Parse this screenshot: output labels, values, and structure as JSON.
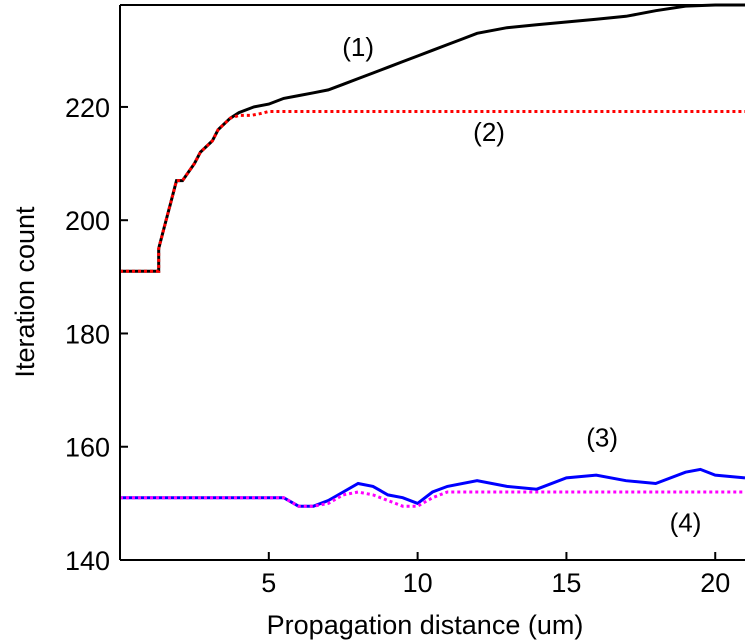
{
  "chart_data": {
    "type": "line",
    "xlabel": "Propagation distance (um)",
    "ylabel": "Iteration count",
    "xlim": [
      0,
      21
    ],
    "ylim": [
      140,
      238
    ],
    "xticks": [
      5,
      10,
      15,
      20
    ],
    "yticks": [
      140,
      160,
      180,
      200,
      220
    ],
    "xtick_labels": [
      "5",
      "10",
      "15",
      "20"
    ],
    "ytick_labels": [
      "140",
      "160",
      "180",
      "200",
      "220"
    ],
    "grid": false,
    "legend": "none",
    "annotations": [
      {
        "text": "(1)",
        "x": 8.0,
        "y": 229
      },
      {
        "text": "(2)",
        "x": 12.4,
        "y": 214
      },
      {
        "text": "(3)",
        "x": 16.2,
        "y": 160
      },
      {
        "text": "(4)",
        "x": 19.0,
        "y": 145
      }
    ],
    "series": [
      {
        "color": "#000000",
        "style": "solid",
        "x": [
          0,
          1.3,
          1.3,
          1.5,
          1.7,
          1.9,
          2.1,
          2.5,
          2.7,
          3.1,
          3.3,
          3.7,
          4.0,
          4.5,
          5.0,
          5.5,
          6.0,
          6.5,
          7.0,
          7.5,
          8.0,
          8.5,
          9.0,
          9.5,
          10.0,
          10.5,
          11.0,
          11.5,
          12.0,
          13.0,
          14.0,
          15.0,
          16.0,
          17.0,
          18.0,
          19.0,
          20.0,
          21.0
        ],
        "y": [
          191,
          191,
          195,
          199,
          203,
          207,
          207,
          210,
          212,
          214,
          216,
          218,
          219,
          220,
          220.5,
          221.5,
          222,
          222.5,
          223,
          224,
          225,
          226,
          227,
          228,
          229,
          230,
          231,
          232,
          233,
          234,
          234.5,
          235,
          235.5,
          236,
          237,
          237.8,
          238,
          238
        ]
      },
      {
        "color": "#ff0000",
        "style": "dotted",
        "x": [
          0,
          1.3,
          1.3,
          1.5,
          1.7,
          1.9,
          2.1,
          2.5,
          2.7,
          3.1,
          3.3,
          3.7,
          4.0,
          4.4,
          4.7,
          5.0,
          21.0
        ],
        "y": [
          191,
          191,
          195,
          199,
          203,
          207,
          207,
          210,
          212,
          214,
          216,
          218,
          218.5,
          218.5,
          218.8,
          219.2,
          219.2
        ]
      },
      {
        "color": "#0000ff",
        "style": "solid",
        "x": [
          0,
          5.5,
          6.0,
          6.5,
          7.0,
          7.5,
          8.0,
          8.5,
          9.0,
          9.5,
          10.0,
          10.5,
          11.0,
          12.0,
          13.0,
          14.0,
          15.0,
          16.0,
          17.0,
          18.0,
          19.0,
          19.5,
          20.0,
          21.0
        ],
        "y": [
          151,
          151,
          149.5,
          149.5,
          150.5,
          152,
          153.5,
          153,
          151.5,
          151,
          150,
          152,
          153,
          154,
          153,
          152.5,
          154.5,
          155,
          154,
          153.5,
          155.5,
          156,
          155,
          154.5
        ]
      },
      {
        "color": "#ff00ff",
        "style": "dotted",
        "x": [
          0,
          5.5,
          6.0,
          6.5,
          7.0,
          7.5,
          8.0,
          8.5,
          9.0,
          9.5,
          10.0,
          10.5,
          11.0,
          12.0,
          13.0,
          14.0,
          15.0,
          16.0,
          17.0,
          18.0,
          19.0,
          20.0,
          21.0
        ],
        "y": [
          151,
          151,
          149.5,
          149.5,
          150,
          151.5,
          152,
          151.5,
          150.5,
          149.5,
          149.5,
          151,
          152,
          152,
          152,
          152,
          152,
          152,
          152,
          152,
          152,
          152,
          152
        ]
      }
    ]
  }
}
